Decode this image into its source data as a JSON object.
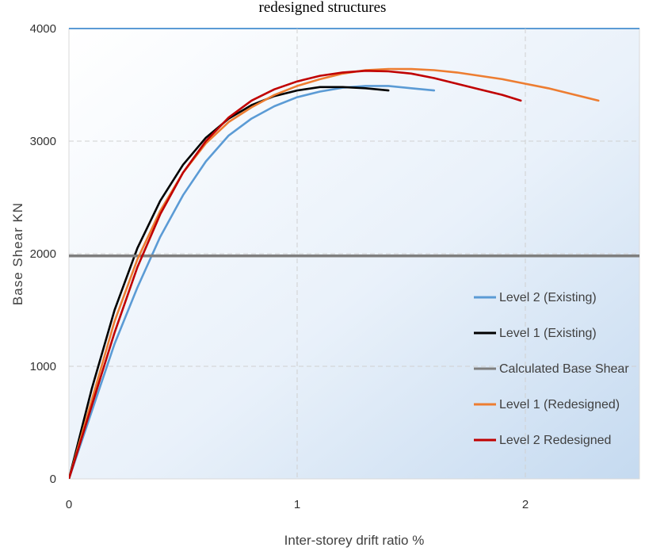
{
  "chart_data": {
    "type": "line",
    "title": "redesigned structures",
    "xlabel": "Inter-storey drift ratio %",
    "ylabel": "Base Shear KN",
    "xlim": [
      0,
      2.5
    ],
    "ylim": [
      0,
      4000
    ],
    "x_ticks": [
      "0",
      "1",
      "2"
    ],
    "y_ticks": [
      "0",
      "1000",
      "2000",
      "3000",
      "4000"
    ],
    "grid": true,
    "legend_position": "right",
    "series": [
      {
        "name": "Level 2 (Existing)",
        "color": "#5b9bd5",
        "points": [
          [
            0,
            0
          ],
          [
            0.1,
            600
          ],
          [
            0.2,
            1200
          ],
          [
            0.3,
            1700
          ],
          [
            0.4,
            2150
          ],
          [
            0.5,
            2520
          ],
          [
            0.6,
            2820
          ],
          [
            0.7,
            3050
          ],
          [
            0.8,
            3200
          ],
          [
            0.9,
            3310
          ],
          [
            1.0,
            3390
          ],
          [
            1.1,
            3440
          ],
          [
            1.2,
            3475
          ],
          [
            1.3,
            3490
          ],
          [
            1.4,
            3490
          ],
          [
            1.5,
            3470
          ],
          [
            1.6,
            3450
          ]
        ]
      },
      {
        "name": "Level 1 (Existing)",
        "color": "#000000",
        "points": [
          [
            0,
            0
          ],
          [
            0.1,
            800
          ],
          [
            0.2,
            1500
          ],
          [
            0.3,
            2050
          ],
          [
            0.4,
            2470
          ],
          [
            0.5,
            2790
          ],
          [
            0.6,
            3030
          ],
          [
            0.7,
            3200
          ],
          [
            0.8,
            3320
          ],
          [
            0.9,
            3400
          ],
          [
            1.0,
            3450
          ],
          [
            1.1,
            3480
          ],
          [
            1.2,
            3480
          ],
          [
            1.3,
            3470
          ],
          [
            1.4,
            3450
          ]
        ]
      },
      {
        "name": "Calculated Base Shear",
        "color": "#7f7f7f",
        "points": [
          [
            0,
            1980
          ],
          [
            2.5,
            1980
          ]
        ]
      },
      {
        "name": "Level 1 (Redesigned)",
        "color": "#ed7d31",
        "points": [
          [
            0,
            0
          ],
          [
            0.1,
            700
          ],
          [
            0.2,
            1400
          ],
          [
            0.3,
            1950
          ],
          [
            0.4,
            2380
          ],
          [
            0.5,
            2720
          ],
          [
            0.6,
            2980
          ],
          [
            0.7,
            3170
          ],
          [
            0.8,
            3300
          ],
          [
            0.9,
            3410
          ],
          [
            1.0,
            3490
          ],
          [
            1.1,
            3550
          ],
          [
            1.2,
            3600
          ],
          [
            1.3,
            3630
          ],
          [
            1.4,
            3640
          ],
          [
            1.5,
            3640
          ],
          [
            1.6,
            3630
          ],
          [
            1.7,
            3610
          ],
          [
            1.8,
            3580
          ],
          [
            1.9,
            3550
          ],
          [
            2.0,
            3510
          ],
          [
            2.1,
            3470
          ],
          [
            2.2,
            3420
          ],
          [
            2.32,
            3360
          ]
        ]
      },
      {
        "name": "Level 2 Redesigned",
        "color": "#c00000",
        "points": [
          [
            0,
            0
          ],
          [
            0.1,
            650
          ],
          [
            0.2,
            1300
          ],
          [
            0.3,
            1880
          ],
          [
            0.4,
            2350
          ],
          [
            0.5,
            2720
          ],
          [
            0.6,
            3000
          ],
          [
            0.7,
            3210
          ],
          [
            0.8,
            3360
          ],
          [
            0.9,
            3460
          ],
          [
            1.0,
            3530
          ],
          [
            1.1,
            3580
          ],
          [
            1.2,
            3610
          ],
          [
            1.3,
            3625
          ],
          [
            1.4,
            3620
          ],
          [
            1.5,
            3600
          ],
          [
            1.6,
            3560
          ],
          [
            1.7,
            3510
          ],
          [
            1.8,
            3460
          ],
          [
            1.9,
            3410
          ],
          [
            1.98,
            3360
          ]
        ]
      }
    ]
  }
}
